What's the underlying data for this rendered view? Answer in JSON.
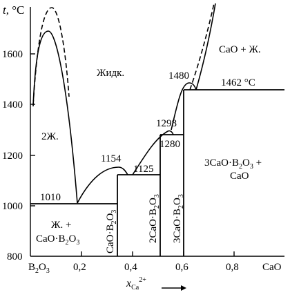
{
  "y_axis": {
    "symbol": "t",
    "unit": ", °C",
    "ticks": [
      "1600",
      "1400",
      "1200",
      "1000",
      "800"
    ]
  },
  "x_axis": {
    "ticks": [
      "0,2",
      "0,4",
      "0,6",
      "0,8"
    ],
    "left_end": {
      "main": "B",
      "sub1": "2",
      "main2": "O",
      "sub2": "3"
    },
    "right_end": "CaO",
    "symbol": "x",
    "symbol_sub": "Ca",
    "symbol_sup": "2+"
  },
  "regions": {
    "liquid": "Жидк.",
    "two_liquids": "2Ж.",
    "cao_plus_liquid": "CaO + Ж.",
    "liquid_plus_cb_line1": "Ж. +",
    "liquid_plus_cb_line2": {
      "a": "CaO·B",
      "s1": "2",
      "b": "O",
      "s2": "3"
    },
    "c3b_plus_cao_line1": {
      "a": "3CaO·B",
      "s1": "2",
      "b": "O",
      "s2": "3",
      "c": " +"
    },
    "c3b_plus_cao_line2": "CaO"
  },
  "compounds": {
    "cb": {
      "a": "CaO·B",
      "s1": "2",
      "b": "O",
      "s2": "3"
    },
    "c2b": {
      "a": "2CaO·B",
      "s1": "2",
      "b": "O",
      "s2": "3"
    },
    "c3b": {
      "a": "3CaO·B",
      "s1": "2",
      "b": "O",
      "s2": "3"
    }
  },
  "points": {
    "t1010": "1010",
    "t1154": "1154",
    "t1125": "1125",
    "t1298": "1298",
    "t1280": "1280",
    "t1480": "1480",
    "t1462": "1462 °C"
  },
  "chart_data": {
    "type": "phase-diagram",
    "xlim": [
      0,
      1
    ],
    "ylim": [
      800,
      1800
    ],
    "temperatures": [
      1010,
      1154,
      1125,
      1298,
      1280,
      1480,
      1462
    ]
  }
}
